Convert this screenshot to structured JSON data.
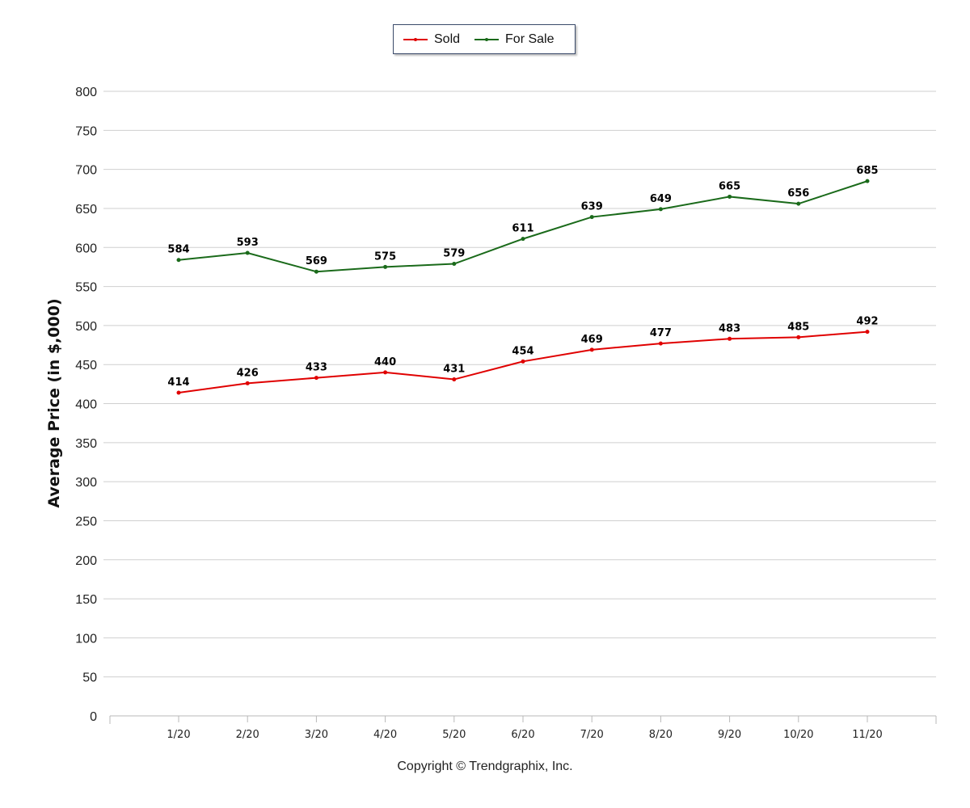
{
  "legend": {
    "items": [
      {
        "label": "Sold",
        "color": "#e00000"
      },
      {
        "label": "For Sale",
        "color": "#1a6a1a"
      }
    ]
  },
  "copyright": "Copyright © Trendgraphix, Inc.",
  "chart_data": {
    "type": "line",
    "title": "",
    "xlabel": "",
    "ylabel": "Average Price (in $,000)",
    "ylim": [
      0,
      800
    ],
    "ytick_step": 50,
    "grid": true,
    "legend_position": "top-center",
    "categories": [
      "1/20",
      "2/20",
      "3/20",
      "4/20",
      "5/20",
      "6/20",
      "7/20",
      "8/20",
      "9/20",
      "10/20",
      "11/20"
    ],
    "series": [
      {
        "name": "Sold",
        "color": "#e00000",
        "values": [
          414,
          426,
          433,
          440,
          431,
          454,
          469,
          477,
          483,
          485,
          492
        ]
      },
      {
        "name": "For Sale",
        "color": "#1a6a1a",
        "values": [
          584,
          593,
          569,
          575,
          579,
          611,
          639,
          649,
          665,
          656,
          685
        ]
      }
    ]
  }
}
